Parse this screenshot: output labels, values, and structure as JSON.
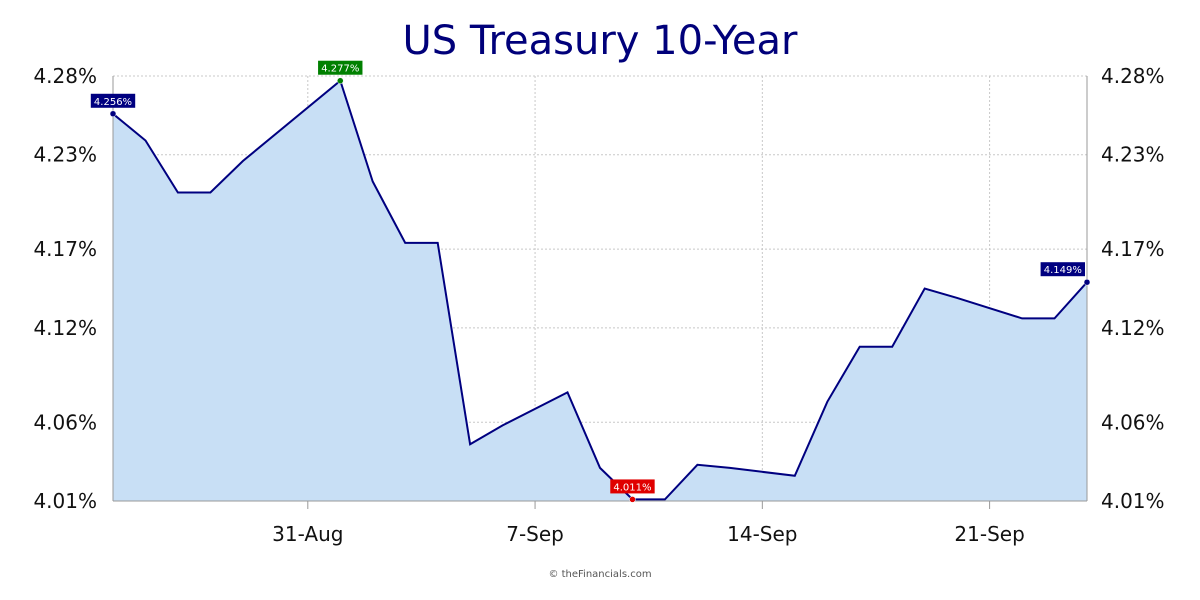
{
  "title": "US Treasury 10-Year",
  "credit": "© theFinancials.com",
  "colors": {
    "line": "#000080",
    "fill": "#c8dff5",
    "grid": "#c8c8c8",
    "label_default": "#000080",
    "label_high": "#008000",
    "label_low": "#e00000"
  },
  "chart_data": {
    "type": "area",
    "title": "US Treasury 10-Year",
    "xlabel": "",
    "ylabel": "",
    "ylim": [
      4.01,
      4.28
    ],
    "y_ticks": [
      "4.01%",
      "4.06%",
      "4.12%",
      "4.17%",
      "4.23%",
      "4.28%"
    ],
    "y_tick_values": [
      4.01,
      4.06,
      4.12,
      4.17,
      4.23,
      4.28
    ],
    "x_ticks": [
      "31-Aug",
      "7-Sep",
      "14-Sep",
      "21-Sep"
    ],
    "x_tick_days": [
      6,
      13,
      20,
      27
    ],
    "grid": true,
    "dual_y_axis": true,
    "series": [
      {
        "x": [
          "25-Aug",
          "26-Aug",
          "27-Aug",
          "28-Aug",
          "29-Aug",
          "1-Sep",
          "2-Sep",
          "3-Sep",
          "4-Sep",
          "5-Sep",
          "6-Sep",
          "8-Sep",
          "9-Sep",
          "10-Sep",
          "11-Sep",
          "12-Sep",
          "13-Sep",
          "15-Sep",
          "16-Sep",
          "17-Sep",
          "18-Sep",
          "19-Sep",
          "20-Sep",
          "22-Sep",
          "23-Sep",
          "24-Sep"
        ],
        "x_day": [
          0,
          1,
          2,
          3,
          4,
          7,
          8,
          9,
          10,
          11,
          12,
          14,
          15,
          16,
          17,
          18,
          19,
          21,
          22,
          23,
          24,
          25,
          26,
          28,
          29,
          30
        ],
        "values": [
          4.256,
          4.239,
          4.206,
          4.206,
          4.226,
          4.277,
          4.213,
          4.174,
          4.174,
          4.046,
          4.058,
          4.079,
          4.031,
          4.011,
          4.011,
          4.033,
          4.031,
          4.026,
          4.073,
          4.108,
          4.108,
          4.145,
          4.139,
          4.126,
          4.126,
          4.149
        ]
      }
    ],
    "annotations": [
      {
        "text": "4.256%",
        "index": 0,
        "kind": "default"
      },
      {
        "text": "4.277%",
        "index": 5,
        "kind": "high"
      },
      {
        "text": "4.011%",
        "index": 13,
        "kind": "low"
      },
      {
        "text": "4.149%",
        "index": 25,
        "kind": "default"
      }
    ]
  }
}
